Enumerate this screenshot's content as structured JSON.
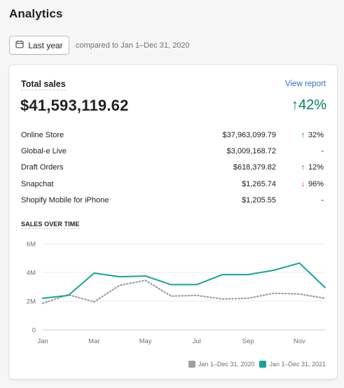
{
  "page": {
    "title": "Analytics"
  },
  "date_picker": {
    "label": "Last year",
    "compare_text": "compared to Jan 1–Dec 31, 2020"
  },
  "card": {
    "title": "Total sales",
    "view_report": "View report",
    "total": "$41,593,119.62",
    "total_change": "42%",
    "total_direction": "up",
    "rows": [
      {
        "channel": "Online Store",
        "amount": "$37,963,099.79",
        "change": "32%",
        "direction": "up"
      },
      {
        "channel": "Global-e Live",
        "amount": "$3,009,168.72",
        "change": "-",
        "direction": "none"
      },
      {
        "channel": "Draft Orders",
        "amount": "$618,379.82",
        "change": "12%",
        "direction": "up"
      },
      {
        "channel": "Snapchat",
        "amount": "$1,265.74",
        "change": "96%",
        "direction": "down"
      },
      {
        "channel": "Shopify Mobile for iPhone",
        "amount": "$1,205.55",
        "change": "-",
        "direction": "none"
      }
    ],
    "sales_over_time_label": "SALES OVER TIME"
  },
  "colors": {
    "current": "#17a398",
    "previous": "#9aa0a6",
    "up": "#008060",
    "down": "#d82c0d",
    "link": "#2c6ecb"
  },
  "chart_data": {
    "type": "line",
    "x": [
      "Jan",
      "Feb",
      "Mar",
      "Apr",
      "May",
      "Jun",
      "Jul",
      "Aug",
      "Sep",
      "Oct",
      "Nov",
      "Dec"
    ],
    "x_tick_labels": [
      "Jan",
      "Mar",
      "May",
      "Jul",
      "Sep",
      "Nov"
    ],
    "y_tick_labels": [
      "0",
      "2M",
      "4M",
      "6M"
    ],
    "ylim": [
      0,
      6000000
    ],
    "series": [
      {
        "name": "Jan 1–Dec 31, 2020",
        "style": "dotted",
        "color": "#9aa0a6",
        "values": [
          1850000,
          2450000,
          1950000,
          3100000,
          3450000,
          2350000,
          2400000,
          2150000,
          2200000,
          2550000,
          2500000,
          2200000
        ]
      },
      {
        "name": "Jan 1–Dec 31, 2021",
        "style": "solid",
        "color": "#17a398",
        "values": [
          2200000,
          2400000,
          3950000,
          3700000,
          3750000,
          3150000,
          3150000,
          3850000,
          3850000,
          4150000,
          4650000,
          2950000
        ]
      }
    ],
    "legend_position": "bottom-right",
    "grid": true
  }
}
